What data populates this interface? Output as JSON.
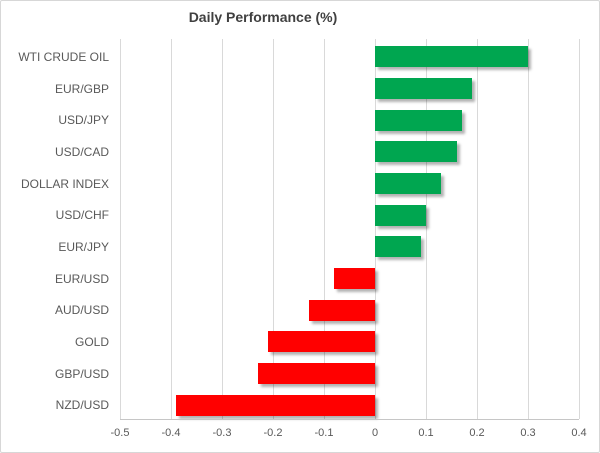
{
  "chart": {
    "title": "Daily Performance (%)"
  },
  "chart_data": {
    "type": "bar",
    "orientation": "horizontal",
    "title": "Daily Performance (%)",
    "categories": [
      "WTI CRUDE OIL",
      "EUR/GBP",
      "USD/JPY",
      "USD/CAD",
      "DOLLAR INDEX",
      "USD/CHF",
      "EUR/JPY",
      "EUR/USD",
      "AUD/USD",
      "GOLD",
      "GBP/USD",
      "NZD/USD"
    ],
    "values": [
      0.3,
      0.19,
      0.17,
      0.16,
      0.13,
      0.1,
      0.09,
      -0.08,
      -0.13,
      -0.21,
      -0.23,
      -0.39
    ],
    "xlabel": "",
    "ylabel": "",
    "xlim": [
      -0.5,
      0.4
    ],
    "xtick_labels": [
      "-0.5",
      "-0.4",
      "-0.3",
      "-0.2",
      "-0.1",
      "0",
      "0.1",
      "0.2",
      "0.3",
      "0.4"
    ],
    "xticks": [
      -0.5,
      -0.4,
      -0.3,
      -0.2,
      -0.1,
      0,
      0.1,
      0.2,
      0.3,
      0.4
    ],
    "grid": true,
    "legend": false,
    "positive_color": "#00A650",
    "negative_color": "#FF0000",
    "gridline_color": "#D9D9D9",
    "label_color": "#595959",
    "title_color": "#404040"
  }
}
